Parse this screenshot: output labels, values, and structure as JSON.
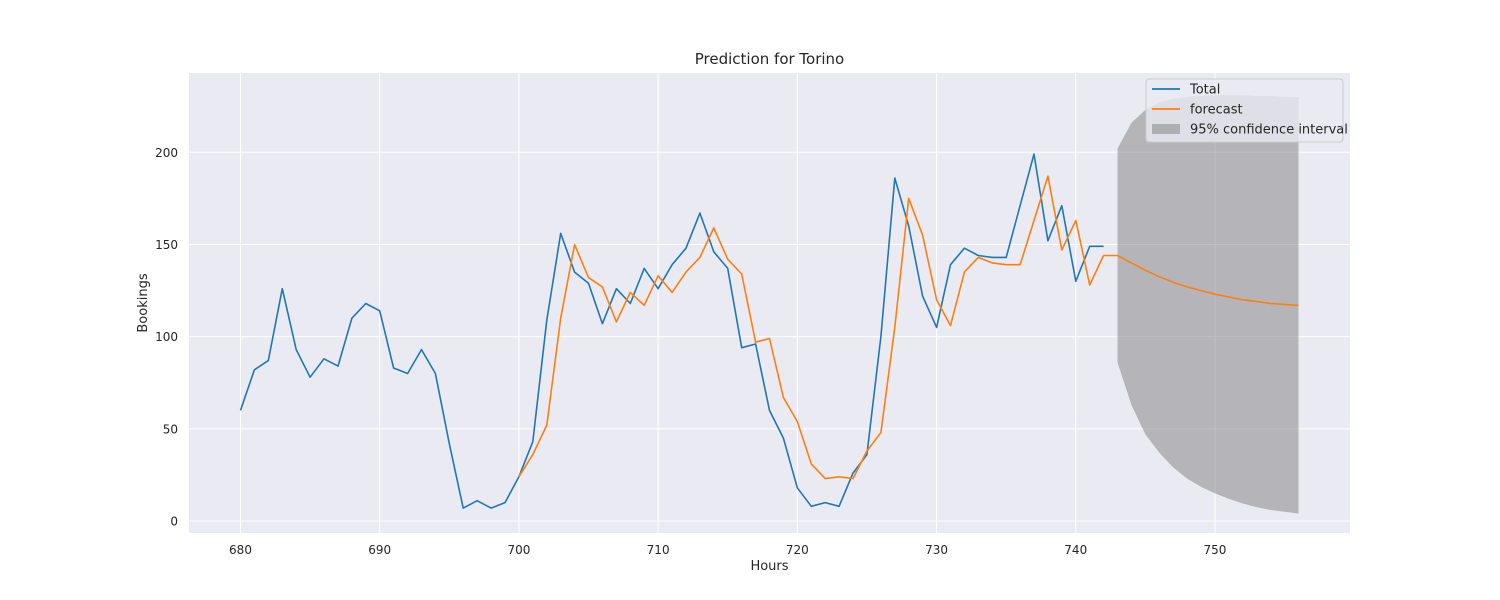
{
  "chart_data": {
    "type": "line",
    "title": "Prediction for Torino",
    "xlabel": "Hours",
    "ylabel": "Bookings",
    "xlim": [
      676.3,
      759.7
    ],
    "ylim": [
      -6.5,
      243
    ],
    "xticks": [
      680,
      690,
      700,
      710,
      720,
      730,
      740,
      750
    ],
    "yticks": [
      0,
      50,
      100,
      150,
      200
    ],
    "grid": true,
    "legend_position": "top-right",
    "colors": {
      "background": "#eaeaf2",
      "grid": "#ffffff",
      "total": "#1f77b4",
      "forecast": "#ff7f0e",
      "ci": "#7f7f7f"
    },
    "series": [
      {
        "name": "Total",
        "x": [
          680,
          681,
          682,
          683,
          684,
          685,
          686,
          687,
          688,
          689,
          690,
          691,
          692,
          693,
          694,
          695,
          696,
          697,
          698,
          699,
          700,
          701,
          702,
          703,
          704,
          705,
          706,
          707,
          708,
          709,
          710,
          711,
          712,
          713,
          714,
          715,
          716,
          717,
          718,
          719,
          720,
          721,
          722,
          723,
          724,
          725,
          726,
          727,
          728,
          729,
          730,
          731,
          732,
          733,
          734,
          735,
          736,
          737,
          738,
          739,
          740,
          741,
          742
        ],
        "y": [
          60,
          82,
          87,
          126,
          93,
          78,
          88,
          84,
          110,
          118,
          114,
          83,
          80,
          93,
          80,
          42,
          7,
          11,
          7,
          10,
          24,
          43,
          109,
          156,
          135,
          129,
          107,
          126,
          118,
          137,
          126,
          139,
          148,
          167,
          146,
          137,
          94,
          96,
          60,
          45,
          18,
          8,
          10,
          8,
          26,
          36,
          100,
          186,
          160,
          122,
          105,
          139,
          148,
          144,
          143,
          143,
          171,
          199,
          152,
          171,
          130,
          149,
          149
        ]
      },
      {
        "name": "forecast",
        "x": [
          700,
          701,
          702,
          703,
          704,
          705,
          706,
          707,
          708,
          709,
          710,
          711,
          712,
          713,
          714,
          715,
          716,
          717,
          718,
          719,
          720,
          721,
          722,
          723,
          724,
          725,
          726,
          727,
          728,
          729,
          730,
          731,
          732,
          733,
          734,
          735,
          736,
          737,
          738,
          739,
          740,
          741,
          742,
          743,
          744,
          745,
          746,
          747,
          748,
          749,
          750,
          751,
          752,
          753,
          754,
          755,
          756
        ],
        "y": [
          24,
          36,
          52,
          110,
          150,
          132,
          127,
          108,
          124,
          117,
          133,
          124,
          135,
          143,
          159,
          142,
          134,
          97,
          99,
          67,
          54,
          31,
          23,
          24,
          23,
          38,
          48,
          105,
          175,
          155,
          120,
          106,
          135,
          143,
          140,
          139,
          139,
          163,
          187,
          147,
          163,
          128,
          144,
          144,
          140,
          136,
          132.5,
          129.5,
          127,
          125,
          123,
          121.5,
          120,
          119,
          118,
          117.5,
          117
        ]
      }
    ],
    "confidence_interval": {
      "name": "95% confidence interval",
      "x": [
        743,
        744,
        745,
        746,
        747,
        748,
        749,
        750,
        751,
        752,
        753,
        754,
        755,
        756
      ],
      "upper": [
        202,
        216,
        223,
        227,
        229,
        230,
        230.5,
        231,
        231,
        231,
        230.5,
        230.5,
        230,
        230
      ],
      "lower": [
        86,
        63,
        47,
        37,
        29,
        23,
        18.5,
        15,
        12,
        9.5,
        7.5,
        6,
        5,
        4
      ]
    }
  }
}
